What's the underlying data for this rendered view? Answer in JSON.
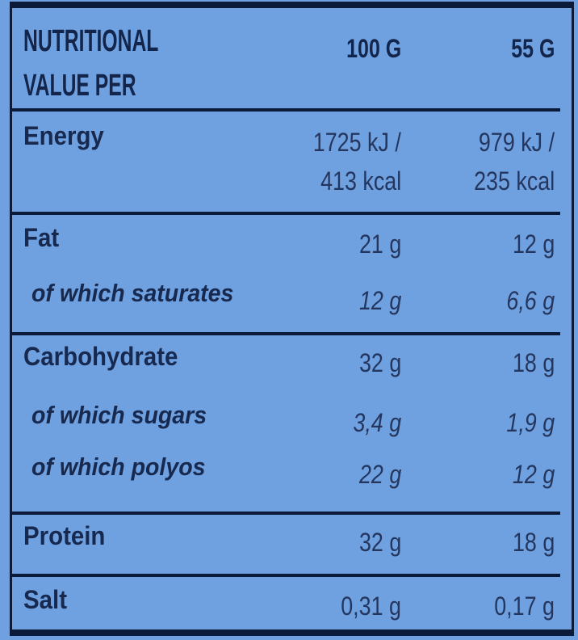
{
  "label_type": "nutrition-facts-table",
  "colors": {
    "background": "#6FA1E1",
    "border": "#0A1A38",
    "heading_ink": "#13254A",
    "label_ink": "#17294E",
    "value_ink": "#24365E"
  },
  "header": {
    "title": "NUTRITIONAL VALUE PER",
    "col1": "100 G",
    "col2": "55 G"
  },
  "rows": [
    {
      "name": "energy",
      "label": "Energy",
      "sub": false,
      "col1": [
        "1725 kJ /",
        "413 kcal"
      ],
      "col2": [
        "979 kJ /",
        "235 kcal"
      ]
    },
    {
      "name": "fat",
      "label": "Fat",
      "sub": false,
      "col1": "21 g",
      "col2": "12 g"
    },
    {
      "name": "saturates",
      "label": "of which saturates",
      "sub": true,
      "col1": "12 g",
      "col2": "6,6 g"
    },
    {
      "name": "carbohydrate",
      "label": "Carbohydrate",
      "sub": false,
      "col1": "32 g",
      "col2": "18 g"
    },
    {
      "name": "sugars",
      "label": "of which sugars",
      "sub": true,
      "col1": "3,4 g",
      "col2": "1,9 g"
    },
    {
      "name": "polyos",
      "label": "of which polyos",
      "sub": true,
      "col1": "22 g",
      "col2": "12 g"
    },
    {
      "name": "protein",
      "label": "Protein",
      "sub": false,
      "col1": "32 g",
      "col2": "18 g"
    },
    {
      "name": "salt",
      "label": "Salt",
      "sub": false,
      "col1": "0,31 g",
      "col2": "0,17 g"
    }
  ]
}
